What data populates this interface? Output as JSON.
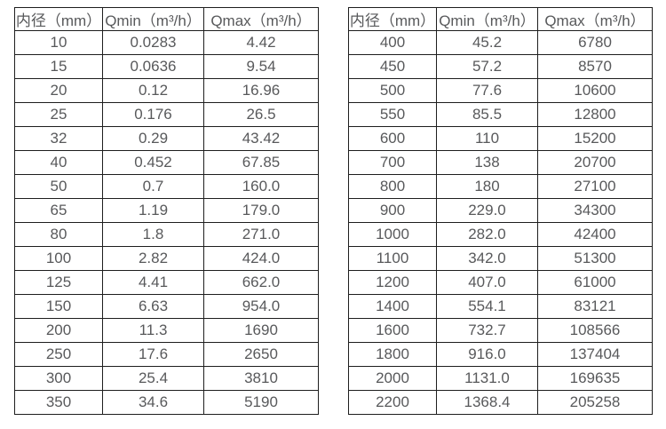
{
  "page": {
    "background": "#ffffff",
    "border_color": "#1e1e1e",
    "text_color": "#58595b"
  },
  "tables": [
    {
      "headers": [
        "内径（mm）",
        "Qmin（m³/h）",
        "Qmax（m³/h）"
      ],
      "rows": [
        [
          "10",
          "0.0283",
          "4.42"
        ],
        [
          "15",
          "0.0636",
          "9.54"
        ],
        [
          "20",
          "0.12",
          "16.96"
        ],
        [
          "25",
          "0.176",
          "26.5"
        ],
        [
          "32",
          "0.29",
          "43.42"
        ],
        [
          "40",
          "0.452",
          "67.85"
        ],
        [
          "50",
          "0.7",
          "160.0"
        ],
        [
          "65",
          "1.19",
          "179.0"
        ],
        [
          "80",
          "1.8",
          "271.0"
        ],
        [
          "100",
          "2.82",
          "424.0"
        ],
        [
          "125",
          "4.41",
          "662.0"
        ],
        [
          "150",
          "6.63",
          "954.0"
        ],
        [
          "200",
          "11.3",
          "1690"
        ],
        [
          "250",
          "17.6",
          "2650"
        ],
        [
          "300",
          "25.4",
          "3810"
        ],
        [
          "350",
          "34.6",
          "5190"
        ]
      ]
    },
    {
      "headers": [
        "内径（mm）",
        "Qmin（m³/h）",
        "Qmax（m³/h）"
      ],
      "rows": [
        [
          "400",
          "45.2",
          "6780"
        ],
        [
          "450",
          "57.2",
          "8570"
        ],
        [
          "500",
          "77.6",
          "10600"
        ],
        [
          "550",
          "85.5",
          "12800"
        ],
        [
          "600",
          "110",
          "15200"
        ],
        [
          "700",
          "138",
          "20700"
        ],
        [
          "800",
          "180",
          "27100"
        ],
        [
          "900",
          "229.0",
          "34300"
        ],
        [
          "1000",
          "282.0",
          "42400"
        ],
        [
          "1100",
          "342.0",
          "51300"
        ],
        [
          "1200",
          "407.0",
          "61000"
        ],
        [
          "1400",
          "554.1",
          "83121"
        ],
        [
          "1600",
          "732.7",
          "108566"
        ],
        [
          "1800",
          "916.0",
          "137404"
        ],
        [
          "2000",
          "1131.0",
          "169635"
        ],
        [
          "2200",
          "1368.4",
          "205258"
        ]
      ]
    }
  ]
}
